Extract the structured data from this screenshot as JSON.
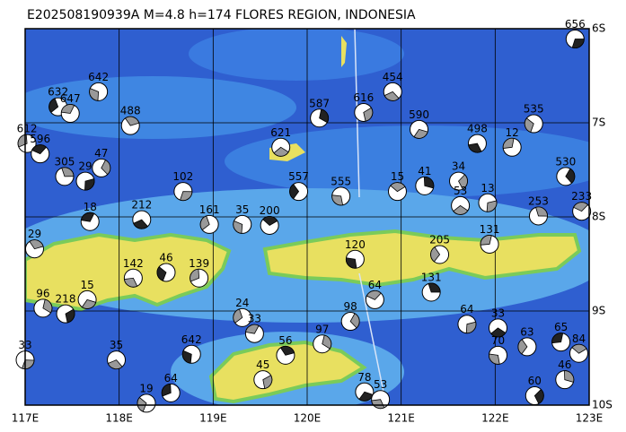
{
  "chart_data": {
    "type": "map",
    "title": "E202508190939A  M=4.8  h=174  FLORES REGION, INDONESIA",
    "xlim": [
      117,
      123
    ],
    "ylim": [
      -10,
      -6
    ],
    "xticks": [
      {
        "value": 117,
        "label": "117E"
      },
      {
        "value": 118,
        "label": "118E"
      },
      {
        "value": 119,
        "label": "119E"
      },
      {
        "value": 120,
        "label": "120E"
      },
      {
        "value": 121,
        "label": "121E"
      },
      {
        "value": 122,
        "label": "122E"
      },
      {
        "value": 123,
        "label": "123E"
      }
    ],
    "yticks": [
      {
        "value": -6,
        "label": "6S"
      },
      {
        "value": -7,
        "label": "7S"
      },
      {
        "value": -8,
        "label": "8S"
      },
      {
        "value": -9,
        "label": "9S"
      },
      {
        "value": -10,
        "label": "10S"
      }
    ],
    "grid": true,
    "events": [
      {
        "lon": 122.85,
        "lat": -6.11,
        "depth": 656
      },
      {
        "lon": 120.91,
        "lat": -6.67,
        "depth": 454
      },
      {
        "lon": 117.78,
        "lat": -6.67,
        "depth": 642
      },
      {
        "lon": 117.35,
        "lat": -6.83,
        "depth": 632
      },
      {
        "lon": 117.48,
        "lat": -6.9,
        "depth": 647
      },
      {
        "lon": 118.12,
        "lat": -7.03,
        "depth": 488
      },
      {
        "lon": 120.13,
        "lat": -6.95,
        "depth": 587
      },
      {
        "lon": 120.6,
        "lat": -6.89,
        "depth": 616
      },
      {
        "lon": 121.19,
        "lat": -7.07,
        "depth": 590
      },
      {
        "lon": 121.81,
        "lat": -7.22,
        "depth": 498
      },
      {
        "lon": 122.41,
        "lat": -7.01,
        "depth": 535
      },
      {
        "lon": 117.02,
        "lat": -7.22,
        "depth": 612
      },
      {
        "lon": 117.16,
        "lat": -7.33,
        "depth": 596
      },
      {
        "lon": 117.42,
        "lat": -7.57,
        "depth": 305
      },
      {
        "lon": 117.81,
        "lat": -7.48,
        "depth": 47
      },
      {
        "lon": 117.64,
        "lat": -7.62,
        "depth": 29
      },
      {
        "lon": 119.72,
        "lat": -7.26,
        "depth": 621
      },
      {
        "lon": 120.36,
        "lat": -7.78,
        "depth": 555
      },
      {
        "lon": 119.91,
        "lat": -7.73,
        "depth": 557
      },
      {
        "lon": 122.18,
        "lat": -7.26,
        "depth": 12
      },
      {
        "lon": 120.96,
        "lat": -7.73,
        "depth": 15
      },
      {
        "lon": 121.25,
        "lat": -7.67,
        "depth": 41
      },
      {
        "lon": 121.61,
        "lat": -7.62,
        "depth": 34
      },
      {
        "lon": 118.68,
        "lat": -7.73,
        "depth": 102
      },
      {
        "lon": 118.24,
        "lat": -8.03,
        "depth": 212
      },
      {
        "lon": 119.31,
        "lat": -8.08,
        "depth": 35
      },
      {
        "lon": 118.96,
        "lat": -8.08,
        "depth": 161
      },
      {
        "lon": 117.69,
        "lat": -8.05,
        "depth": 18
      },
      {
        "lon": 117.1,
        "lat": -8.34,
        "depth": 29
      },
      {
        "lon": 117.19,
        "lat": -8.97,
        "depth": 96
      },
      {
        "lon": 117.43,
        "lat": -9.03,
        "depth": 218
      },
      {
        "lon": 117.66,
        "lat": -8.88,
        "depth": 15
      },
      {
        "lon": 118.15,
        "lat": -8.65,
        "depth": 142
      },
      {
        "lon": 118.5,
        "lat": -8.59,
        "depth": 46
      },
      {
        "lon": 118.85,
        "lat": -8.65,
        "depth": 139
      },
      {
        "lon": 120.72,
        "lat": -8.88,
        "depth": 64
      },
      {
        "lon": 121.32,
        "lat": -8.8,
        "depth": 131
      },
      {
        "lon": 120.46,
        "lat": -9.11,
        "depth": 98
      },
      {
        "lon": 121.7,
        "lat": -9.14,
        "depth": 64
      },
      {
        "lon": 122.03,
        "lat": -9.18,
        "depth": 33
      },
      {
        "lon": 122.03,
        "lat": -9.47,
        "depth": 70
      },
      {
        "lon": 122.34,
        "lat": -9.38,
        "depth": 63
      },
      {
        "lon": 122.7,
        "lat": -9.33,
        "depth": 65
      },
      {
        "lon": 122.89,
        "lat": -9.45,
        "depth": 84
      },
      {
        "lon": 122.74,
        "lat": -9.73,
        "depth": 46
      },
      {
        "lon": 122.42,
        "lat": -9.9,
        "depth": 60
      },
      {
        "lon": 117.0,
        "lat": -9.52,
        "depth": 33
      },
      {
        "lon": 117.97,
        "lat": -9.52,
        "depth": 35
      },
      {
        "lon": 118.77,
        "lat": -9.46,
        "depth": 642
      },
      {
        "lon": 119.31,
        "lat": -9.07,
        "depth": 24
      },
      {
        "lon": 119.44,
        "lat": -9.24,
        "depth": 33
      },
      {
        "lon": 119.77,
        "lat": -9.47,
        "depth": 56
      },
      {
        "lon": 120.16,
        "lat": -9.35,
        "depth": 97
      },
      {
        "lon": 119.53,
        "lat": -9.73,
        "depth": 45
      },
      {
        "lon": 120.61,
        "lat": -9.86,
        "depth": 78
      },
      {
        "lon": 120.78,
        "lat": -9.94,
        "depth": 53
      },
      {
        "lon": 118.29,
        "lat": -9.98,
        "depth": 19
      },
      {
        "lon": 118.55,
        "lat": -9.87,
        "depth": 64
      },
      {
        "lon": 122.92,
        "lat": -7.94,
        "depth": 233
      },
      {
        "lon": 122.46,
        "lat": -7.99,
        "depth": 253
      },
      {
        "lon": 122.75,
        "lat": -7.57,
        "depth": 530
      },
      {
        "lon": 121.92,
        "lat": -7.85,
        "depth": 13
      },
      {
        "lon": 121.63,
        "lat": -7.88,
        "depth": 53
      },
      {
        "lon": 120.51,
        "lat": -8.45,
        "depth": 120
      },
      {
        "lon": 121.41,
        "lat": -8.4,
        "depth": 205
      },
      {
        "lon": 121.94,
        "lat": -8.29,
        "depth": 131
      },
      {
        "lon": 119.6,
        "lat": -8.09,
        "depth": 200
      }
    ]
  }
}
